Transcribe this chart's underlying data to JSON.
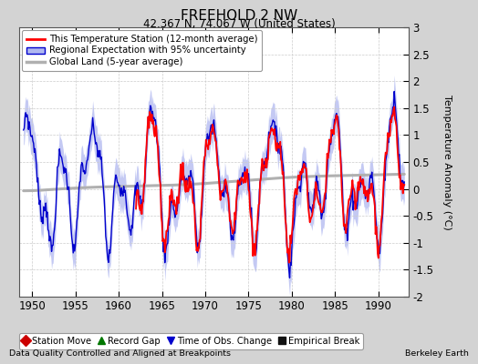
{
  "title": "FREEHOLD 2 NW",
  "subtitle": "42.367 N, 74.067 W (United States)",
  "ylabel": "Temperature Anomaly (°C)",
  "footer_left": "Data Quality Controlled and Aligned at Breakpoints",
  "footer_right": "Berkeley Earth",
  "xlim": [
    1948.5,
    1993.5
  ],
  "ylim": [
    -2.0,
    3.0
  ],
  "yticks": [
    -2,
    -1.5,
    -1,
    -0.5,
    0,
    0.5,
    1,
    1.5,
    2,
    2.5,
    3
  ],
  "xticks": [
    1950,
    1955,
    1960,
    1965,
    1970,
    1975,
    1980,
    1985,
    1990
  ],
  "bg_color": "#d3d3d3",
  "plot_bg_color": "#ffffff",
  "grid_color": "#cccccc",
  "station_color": "#ff0000",
  "regional_color": "#0000cc",
  "regional_fill_color": "#b0b8f0",
  "global_color": "#b0b0b0",
  "legend_items": [
    {
      "label": "This Temperature Station (12-month average)",
      "color": "#ff0000",
      "lw": 1.8
    },
    {
      "label": "Regional Expectation with 95% uncertainty",
      "color": "#0000cc",
      "fill": "#b0b8f0",
      "lw": 1.5
    },
    {
      "label": "Global Land (5-year average)",
      "color": "#b0b0b0",
      "lw": 2.0
    }
  ],
  "bottom_legend": [
    {
      "label": "Station Move",
      "marker": "D",
      "color": "#cc0000"
    },
    {
      "label": "Record Gap",
      "marker": "^",
      "color": "#007700"
    },
    {
      "label": "Time of Obs. Change",
      "marker": "v",
      "color": "#0000cc"
    },
    {
      "label": "Empirical Break",
      "marker": "s",
      "color": "#111111"
    }
  ]
}
